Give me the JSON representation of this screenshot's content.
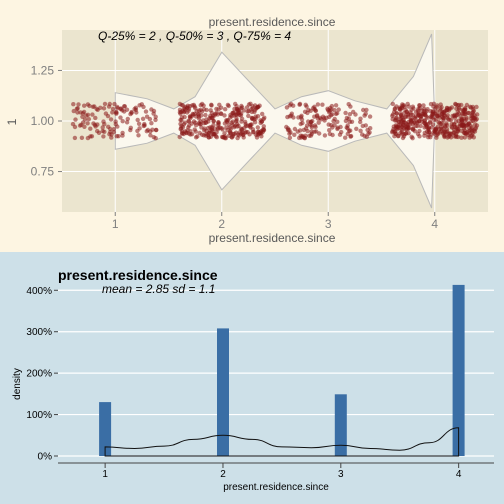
{
  "chart_data": [
    {
      "type": "violin",
      "title": "present.residence.since",
      "annotation": "Q-25% =  2 ,  Q-50% =  3 ,  Q-75% = 4",
      "xlabel": "present.residence.since",
      "ylabel": "1",
      "x_ticks": [
        1,
        2,
        3,
        4
      ],
      "y_ticks": [
        "0.75",
        "1.00",
        "1.25"
      ],
      "xlim": [
        0.5,
        4.5
      ],
      "ylim": [
        0.55,
        1.45
      ],
      "groups": [
        {
          "x": 1,
          "count": 130
        },
        {
          "x": 2,
          "count": 308
        },
        {
          "x": 3,
          "count": 149
        },
        {
          "x": 4,
          "count": 413
        }
      ],
      "violin_width": [
        {
          "x": 1.0,
          "w": 0.14
        },
        {
          "x": 1.3,
          "w": 0.11
        },
        {
          "x": 1.55,
          "w": 0.06
        },
        {
          "x": 1.75,
          "w": 0.12
        },
        {
          "x": 2.0,
          "w": 0.34
        },
        {
          "x": 2.25,
          "w": 0.2
        },
        {
          "x": 2.5,
          "w": 0.06
        },
        {
          "x": 2.75,
          "w": 0.12
        },
        {
          "x": 3.0,
          "w": 0.15
        },
        {
          "x": 3.25,
          "w": 0.1
        },
        {
          "x": 3.55,
          "w": 0.06
        },
        {
          "x": 3.8,
          "w": 0.22
        },
        {
          "x": 3.97,
          "w": 0.43
        },
        {
          "x": 4.0,
          "w": 0.0
        }
      ],
      "colors": {
        "panel": "#ebe5cf",
        "points": "#8b1a1a",
        "violin_fill": "#fbf8ee",
        "violin_stroke": "#b9b9b9"
      },
      "grid": true
    },
    {
      "type": "histogram",
      "title": "present.residence.since",
      "subtitle": "mean =  2.85   sd = 1.1",
      "xlabel": "present.residence.since",
      "ylabel": "density",
      "x_ticks": [
        1,
        2,
        3,
        4
      ],
      "y_ticks": [
        "0%",
        "100%",
        "200%",
        "300%",
        "400%"
      ],
      "xlim": [
        0.6,
        4.3
      ],
      "ylim": [
        0,
        420
      ],
      "categories": [
        1,
        2,
        3,
        4
      ],
      "values": [
        130,
        308,
        149,
        413
      ],
      "density_curve": [
        {
          "x": 1.0,
          "y": 22
        },
        {
          "x": 1.25,
          "y": 18
        },
        {
          "x": 1.5,
          "y": 24
        },
        {
          "x": 1.75,
          "y": 40
        },
        {
          "x": 2.0,
          "y": 50
        },
        {
          "x": 2.25,
          "y": 40
        },
        {
          "x": 2.5,
          "y": 22
        },
        {
          "x": 2.75,
          "y": 20
        },
        {
          "x": 3.0,
          "y": 26
        },
        {
          "x": 3.25,
          "y": 18
        },
        {
          "x": 3.5,
          "y": 14
        },
        {
          "x": 3.75,
          "y": 32
        },
        {
          "x": 4.0,
          "y": 68
        }
      ],
      "colors": {
        "bars": "#3a6ea5",
        "curve": "#111111",
        "grid": "#ffffff"
      },
      "grid": true
    }
  ]
}
